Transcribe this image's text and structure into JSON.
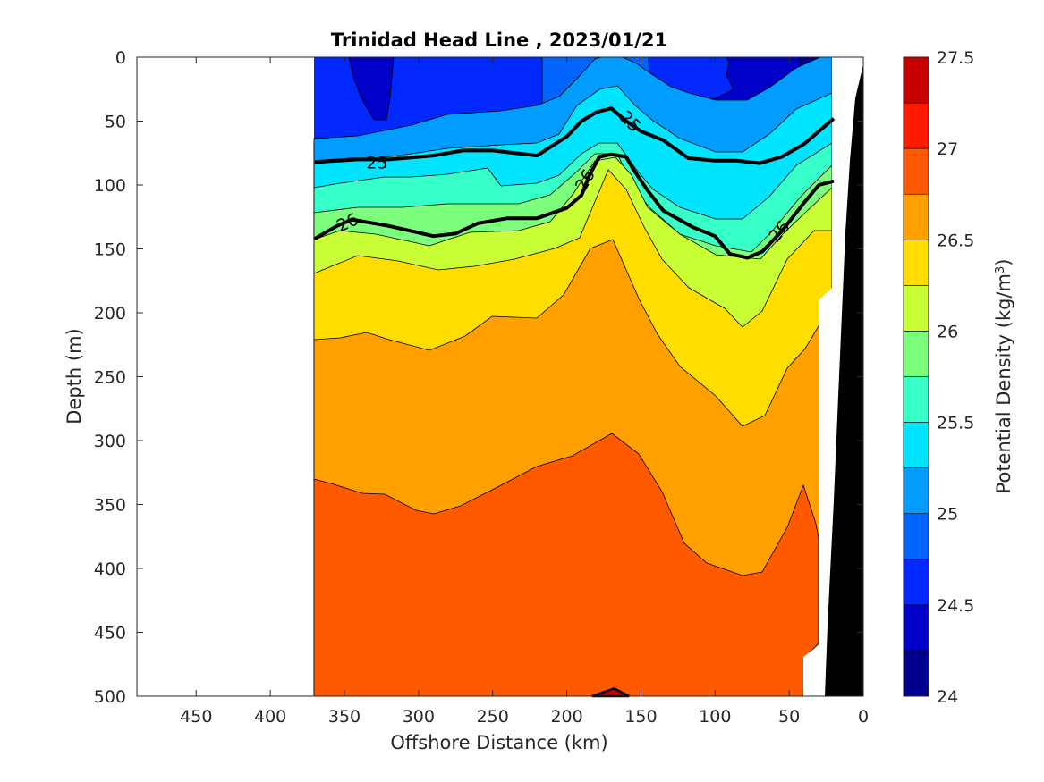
{
  "chart_data": {
    "type": "contour",
    "title": "Trinidad Head Line , 2023/01/21",
    "xlabel": "Offshore Distance (km)",
    "ylabel": "Depth (m)",
    "colorbar_label": "Potential Density (kg/m",
    "colorbar_label_sup": "3",
    "colorbar_label_end": ")",
    "xlim": [
      490,
      0
    ],
    "ylim": [
      500,
      0
    ],
    "x_reversed": true,
    "y_reversed": true,
    "x_ticks": [
      450,
      400,
      350,
      300,
      250,
      200,
      150,
      100,
      50,
      0
    ],
    "y_ticks": [
      0,
      50,
      100,
      150,
      200,
      250,
      300,
      350,
      400,
      450,
      500
    ],
    "colorbar_range": [
      24,
      27.5
    ],
    "colorbar_ticks": [
      24,
      24.5,
      25,
      25.5,
      26,
      26.5,
      27,
      27.5
    ],
    "colorbar_levels": [
      24,
      24.25,
      24.5,
      24.75,
      25,
      25.25,
      25.5,
      25.75,
      26,
      26.25,
      26.5,
      26.75,
      27,
      27.25,
      27.5
    ],
    "colorbar_colors": [
      "#00008f",
      "#0000c8",
      "#0028ff",
      "#0064ff",
      "#009cff",
      "#00e4ff",
      "#36ffc8",
      "#7cff7c",
      "#c8ff36",
      "#ffdd00",
      "#ffa000",
      "#ff5a00",
      "#ff1a00",
      "#c80000"
    ],
    "data_extent_km": [
      370,
      20
    ],
    "bold_contours": [
      {
        "level": "25",
        "points": [
          [
            370,
            82
          ],
          [
            345,
            80
          ],
          [
            320,
            80
          ],
          [
            290,
            77
          ],
          [
            270,
            73
          ],
          [
            250,
            73
          ],
          [
            220,
            77
          ],
          [
            200,
            62
          ],
          [
            190,
            50
          ],
          [
            180,
            43
          ],
          [
            170,
            40
          ],
          [
            160,
            50
          ],
          [
            150,
            58
          ],
          [
            135,
            65
          ],
          [
            118,
            79
          ],
          [
            100,
            81
          ],
          [
            85,
            81
          ],
          [
            70,
            83
          ],
          [
            55,
            78
          ],
          [
            40,
            68
          ],
          [
            20,
            48
          ]
        ]
      },
      {
        "level": "26",
        "points": [
          [
            370,
            142
          ],
          [
            355,
            132
          ],
          [
            345,
            127
          ],
          [
            320,
            132
          ],
          [
            290,
            140
          ],
          [
            275,
            138
          ],
          [
            260,
            130
          ],
          [
            240,
            126
          ],
          [
            220,
            126
          ],
          [
            200,
            118
          ],
          [
            190,
            108
          ],
          [
            185,
            93
          ],
          [
            178,
            78
          ],
          [
            170,
            76
          ],
          [
            160,
            78
          ],
          [
            155,
            88
          ],
          [
            145,
            105
          ],
          [
            135,
            120
          ],
          [
            115,
            133
          ],
          [
            100,
            140
          ],
          [
            90,
            154
          ],
          [
            78,
            157
          ],
          [
            68,
            152
          ],
          [
            55,
            136
          ],
          [
            40,
            114
          ],
          [
            30,
            100
          ],
          [
            20,
            97
          ]
        ]
      }
    ],
    "contour_labels": [
      {
        "text": "25",
        "x": 328,
        "y": 82,
        "angle": 0
      },
      {
        "text": "25",
        "x": 157,
        "y": 50,
        "angle": 45
      },
      {
        "text": "26",
        "x": 348,
        "y": 129,
        "angle": -25
      },
      {
        "text": "26",
        "x": 188,
        "y": 96,
        "angle": -60
      },
      {
        "text": "26",
        "x": 57,
        "y": 136,
        "angle": -50
      }
    ],
    "bottom_blob": {
      "level": "27",
      "points": [
        [
          183,
          500
        ],
        [
          168,
          494
        ],
        [
          158,
          500
        ]
      ]
    }
  }
}
